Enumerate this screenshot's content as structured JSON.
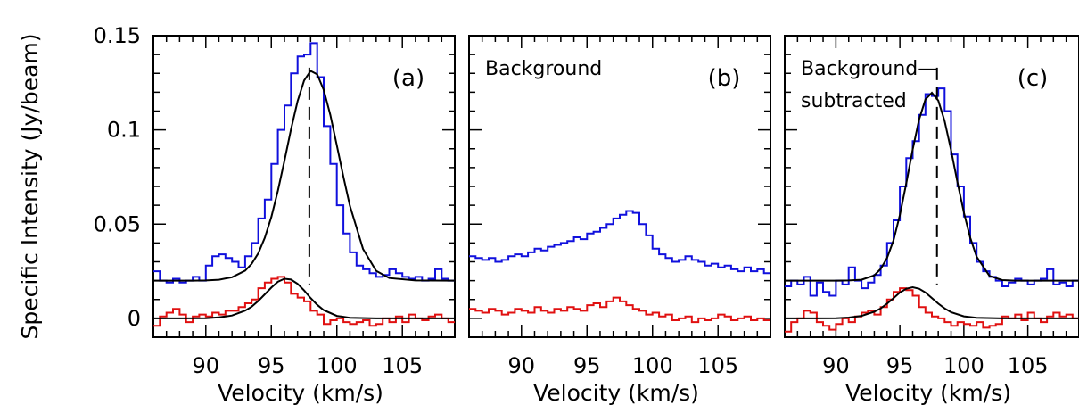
{
  "ylabel": "Specific Intensity (Jy/beam)",
  "colors": {
    "blue": "#1010dd",
    "red": "#e01010",
    "black": "#000000"
  },
  "y_ticks": [
    "0",
    "0.05",
    "0.1",
    "0.15"
  ],
  "chart_data": [
    {
      "type": "line",
      "panel": "(a)",
      "annotation": "",
      "xlabel": "Velocity (km/s)",
      "xlim": [
        86,
        109
      ],
      "ylim": [
        -0.01,
        0.15
      ],
      "x_ticks": [
        "90",
        "95",
        "100",
        "105"
      ],
      "dashed_marker_x": 97.9,
      "series": [
        {
          "color": "#1010dd",
          "step": true,
          "x": [
            86,
            86.5,
            87,
            87.5,
            88,
            88.5,
            89,
            89.5,
            90,
            90.5,
            91,
            91.5,
            92,
            92.5,
            93,
            93.5,
            94,
            94.5,
            95,
            95.5,
            96,
            96.5,
            97,
            97.5,
            98,
            98.5,
            99,
            99.5,
            100,
            100.5,
            101,
            101.5,
            102,
            102.5,
            103,
            103.5,
            104,
            104.5,
            105,
            105.5,
            106,
            106.5,
            107,
            107.5,
            108,
            108.5
          ],
          "y": [
            0.025,
            0.02,
            0.019,
            0.021,
            0.019,
            0.02,
            0.022,
            0.02,
            0.028,
            0.033,
            0.034,
            0.032,
            0.03,
            0.027,
            0.033,
            0.04,
            0.053,
            0.063,
            0.082,
            0.1,
            0.113,
            0.13,
            0.139,
            0.14,
            0.146,
            0.128,
            0.102,
            0.082,
            0.06,
            0.045,
            0.035,
            0.028,
            0.026,
            0.024,
            0.022,
            0.023,
            0.026,
            0.024,
            0.022,
            0.021,
            0.022,
            0.02,
            0.021,
            0.026,
            0.021,
            0.02
          ]
        },
        {
          "color": "#e01010",
          "step": true,
          "x": [
            86,
            86.5,
            87,
            87.5,
            88,
            88.5,
            89,
            89.5,
            90,
            90.5,
            91,
            91.5,
            92,
            92.5,
            93,
            93.5,
            94,
            94.5,
            95,
            95.5,
            96,
            96.5,
            97,
            97.5,
            98,
            98.5,
            99,
            99.5,
            100,
            100.5,
            101,
            101.5,
            102,
            102.5,
            103,
            103.5,
            104,
            104.5,
            105,
            105.5,
            106,
            106.5,
            107,
            107.5,
            108,
            108.5
          ],
          "y": [
            -0.004,
            0.001,
            0.003,
            0.005,
            0.002,
            -0.002,
            0.001,
            0.002,
            0.001,
            0.003,
            0.002,
            0.004,
            0.004,
            0.006,
            0.008,
            0.01,
            0.016,
            0.019,
            0.021,
            0.022,
            0.019,
            0.013,
            0.011,
            0.009,
            0.004,
            0.002,
            -0.003,
            -0.001,
            0.0,
            -0.002,
            -0.003,
            -0.002,
            -0.001,
            -0.004,
            -0.003,
            0.0,
            -0.002,
            0.001,
            -0.002,
            0.002,
            0.0,
            -0.001,
            0.001,
            0.002,
            0.0,
            -0.002
          ]
        },
        {
          "color": "#000000",
          "step": false,
          "x": [
            86,
            87,
            88,
            89,
            90,
            91,
            92,
            93,
            93.5,
            94,
            94.5,
            95,
            95.5,
            96,
            96.5,
            97,
            97.5,
            98,
            98.5,
            99,
            99.5,
            100,
            100.5,
            101,
            102,
            103,
            104,
            106,
            109
          ],
          "y": [
            0.02,
            0.02,
            0.02,
            0.02,
            0.0201,
            0.0205,
            0.0218,
            0.0253,
            0.0289,
            0.0345,
            0.0427,
            0.0538,
            0.0677,
            0.0837,
            0.1002,
            0.1152,
            0.1262,
            0.1313,
            0.1295,
            0.1212,
            0.108,
            0.0918,
            0.0751,
            0.0597,
            0.0368,
            0.0252,
            0.0214,
            0.0201,
            0.02
          ]
        },
        {
          "color": "#000000",
          "step": false,
          "x": [
            86,
            88,
            90,
            91,
            92,
            93,
            93.5,
            94,
            94.5,
            95,
            95.5,
            96,
            96.5,
            97,
            97.5,
            98,
            98.5,
            99,
            100,
            101,
            103,
            109
          ],
          "y": [
            0.0,
            0.0,
            0.0001,
            0.0005,
            0.0015,
            0.0041,
            0.0062,
            0.0092,
            0.0127,
            0.0163,
            0.0194,
            0.021,
            0.0206,
            0.0183,
            0.0148,
            0.0108,
            0.0072,
            0.0044,
            0.0013,
            0.0003,
            0.0,
            0.0
          ]
        }
      ]
    },
    {
      "type": "line",
      "panel": "(b)",
      "annotation": "Background",
      "xlabel": "Velocity (km/s)",
      "xlim": [
        86,
        109
      ],
      "ylim": [
        -0.01,
        0.15
      ],
      "x_ticks": [
        "90",
        "95",
        "100",
        "105"
      ],
      "series": [
        {
          "color": "#1010dd",
          "step": true,
          "x": [
            86,
            86.5,
            87,
            87.5,
            88,
            88.5,
            89,
            89.5,
            90,
            90.5,
            91,
            91.5,
            92,
            92.5,
            93,
            93.5,
            94,
            94.5,
            95,
            95.5,
            96,
            96.5,
            97,
            97.5,
            98,
            98.5,
            99,
            99.5,
            100,
            100.5,
            101,
            101.5,
            102,
            102.5,
            103,
            103.5,
            104,
            104.5,
            105,
            105.5,
            106,
            106.5,
            107,
            107.5,
            108,
            108.5
          ],
          "y": [
            0.033,
            0.032,
            0.031,
            0.032,
            0.03,
            0.031,
            0.033,
            0.034,
            0.033,
            0.035,
            0.037,
            0.036,
            0.038,
            0.039,
            0.04,
            0.041,
            0.043,
            0.042,
            0.045,
            0.046,
            0.048,
            0.05,
            0.053,
            0.055,
            0.057,
            0.056,
            0.05,
            0.044,
            0.037,
            0.034,
            0.032,
            0.03,
            0.031,
            0.033,
            0.031,
            0.03,
            0.028,
            0.029,
            0.027,
            0.028,
            0.026,
            0.025,
            0.027,
            0.025,
            0.026,
            0.024
          ]
        },
        {
          "color": "#e01010",
          "step": true,
          "x": [
            86,
            86.5,
            87,
            87.5,
            88,
            88.5,
            89,
            89.5,
            90,
            90.5,
            91,
            91.5,
            92,
            92.5,
            93,
            93.5,
            94,
            94.5,
            95,
            95.5,
            96,
            96.5,
            97,
            97.5,
            98,
            98.5,
            99,
            99.5,
            100,
            100.5,
            101,
            101.5,
            102,
            102.5,
            103,
            103.5,
            104,
            104.5,
            105,
            105.5,
            106,
            106.5,
            107,
            107.5,
            108,
            108.5
          ],
          "y": [
            0.005,
            0.004,
            0.003,
            0.005,
            0.004,
            0.002,
            0.003,
            0.005,
            0.004,
            0.003,
            0.006,
            0.004,
            0.003,
            0.005,
            0.004,
            0.006,
            0.005,
            0.004,
            0.007,
            0.008,
            0.006,
            0.009,
            0.011,
            0.009,
            0.007,
            0.005,
            0.004,
            0.002,
            0.003,
            0.001,
            0.002,
            -0.001,
            0.0,
            0.001,
            -0.002,
            0.0,
            -0.001,
            0.0,
            0.002,
            0.001,
            -0.001,
            0.0,
            0.001,
            -0.001,
            0.0,
            -0.001
          ]
        }
      ]
    },
    {
      "type": "line",
      "panel": "(c)",
      "annotation": [
        "Background—",
        "subtracted"
      ],
      "xlabel": "Velocity (km/s)",
      "xlim": [
        86,
        109
      ],
      "ylim": [
        -0.01,
        0.15
      ],
      "x_ticks": [
        "90",
        "95",
        "100",
        "105"
      ],
      "dashed_marker_x": 97.9,
      "series": [
        {
          "color": "#1010dd",
          "step": true,
          "x": [
            86,
            86.5,
            87,
            87.5,
            88,
            88.5,
            89,
            89.5,
            90,
            90.5,
            91,
            91.5,
            92,
            92.5,
            93,
            93.5,
            94,
            94.5,
            95,
            95.5,
            96,
            96.5,
            97,
            97.5,
            98,
            98.5,
            99,
            99.5,
            100,
            100.5,
            101,
            101.5,
            102,
            102.5,
            103,
            103.5,
            104,
            104.5,
            105,
            105.5,
            106,
            106.5,
            107,
            107.5,
            108,
            108.5
          ],
          "y": [
            0.017,
            0.02,
            0.018,
            0.022,
            0.012,
            0.019,
            0.014,
            0.012,
            0.02,
            0.018,
            0.027,
            0.02,
            0.016,
            0.019,
            0.023,
            0.028,
            0.04,
            0.052,
            0.07,
            0.085,
            0.094,
            0.108,
            0.119,
            0.118,
            0.122,
            0.11,
            0.087,
            0.07,
            0.054,
            0.04,
            0.03,
            0.025,
            0.022,
            0.02,
            0.017,
            0.019,
            0.021,
            0.02,
            0.018,
            0.02,
            0.021,
            0.026,
            0.018,
            0.019,
            0.017,
            0.02
          ]
        },
        {
          "color": "#e01010",
          "step": true,
          "x": [
            86,
            86.5,
            87,
            87.5,
            88,
            88.5,
            89,
            89.5,
            90,
            90.5,
            91,
            91.5,
            92,
            92.5,
            93,
            93.5,
            94,
            94.5,
            95,
            95.5,
            96,
            96.5,
            97,
            97.5,
            98,
            98.5,
            99,
            99.5,
            100,
            100.5,
            101,
            101.5,
            102,
            102.5,
            103,
            103.5,
            104,
            104.5,
            105,
            105.5,
            106,
            106.5,
            107,
            107.5,
            108,
            108.5
          ],
          "y": [
            -0.007,
            -0.002,
            0.0,
            0.004,
            0.003,
            -0.002,
            -0.004,
            -0.006,
            -0.003,
            0.0,
            -0.002,
            0.001,
            0.003,
            0.004,
            0.002,
            0.006,
            0.01,
            0.014,
            0.016,
            0.015,
            0.012,
            0.006,
            0.003,
            0.001,
            0.0,
            -0.002,
            -0.004,
            -0.002,
            -0.003,
            -0.004,
            -0.002,
            -0.005,
            -0.004,
            -0.003,
            0.001,
            0.0,
            0.002,
            -0.001,
            0.003,
            0.0,
            -0.002,
            0.001,
            0.003,
            0.001,
            0.002,
            0.0
          ]
        },
        {
          "color": "#000000",
          "step": false,
          "x": [
            86,
            88,
            90,
            91,
            92,
            93,
            93.5,
            94,
            94.5,
            95,
            95.5,
            96,
            96.5,
            97,
            97.5,
            98,
            98.5,
            99,
            99.5,
            100,
            100.5,
            101,
            102,
            103,
            104,
            106,
            109
          ],
          "y": [
            0.02,
            0.02,
            0.02,
            0.0201,
            0.0205,
            0.0228,
            0.0262,
            0.0321,
            0.0414,
            0.0548,
            0.0716,
            0.0896,
            0.1055,
            0.1162,
            0.1197,
            0.1156,
            0.1047,
            0.0893,
            0.0722,
            0.0562,
            0.0428,
            0.0327,
            0.0225,
            0.0203,
            0.02,
            0.02,
            0.02
          ]
        },
        {
          "color": "#000000",
          "step": false,
          "x": [
            86,
            88,
            90,
            91,
            92,
            93,
            93.5,
            94,
            94.5,
            95,
            95.5,
            96,
            96.5,
            97,
            97.5,
            98,
            98.5,
            99,
            100,
            101,
            103,
            109
          ],
          "y": [
            0.0,
            0.0,
            0.0001,
            0.0004,
            0.0013,
            0.0035,
            0.0053,
            0.0078,
            0.0107,
            0.0137,
            0.0157,
            0.0165,
            0.0157,
            0.0137,
            0.0108,
            0.0078,
            0.0053,
            0.0033,
            0.0011,
            0.0003,
            0.0,
            0.0
          ]
        }
      ]
    }
  ]
}
